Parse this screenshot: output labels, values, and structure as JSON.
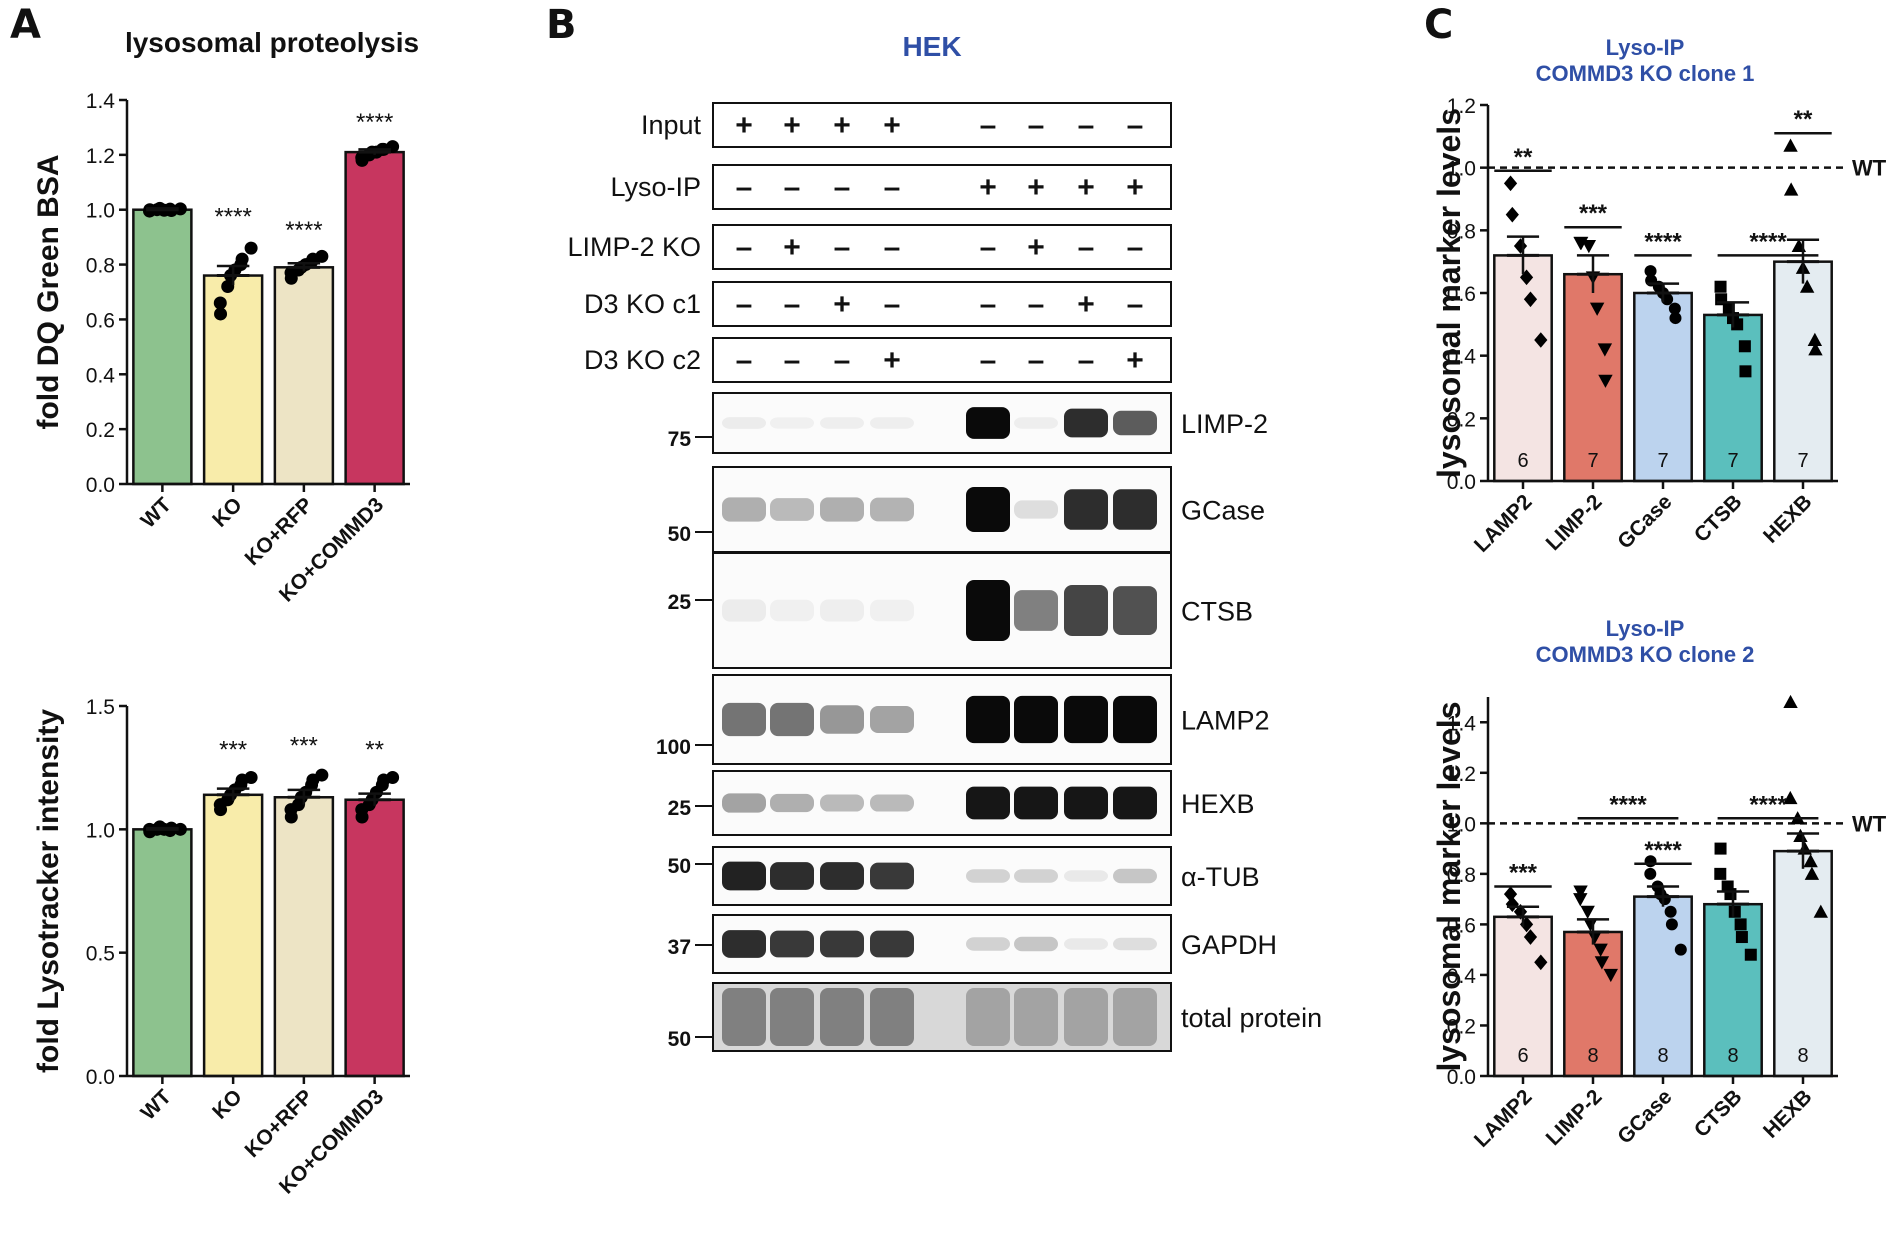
{
  "panels": {
    "a": "A",
    "b": "B",
    "c": "C"
  },
  "colors": {
    "wt": "#8dc28e",
    "ko": "#f8ecaa",
    "ko_rfp": "#ede4c5",
    "ko_commd3": "#c7365f",
    "lamp2": "#f4e4e3",
    "limp2": "#e07869",
    "gcase": "#bcd3ee",
    "ctsb": "#5bbfbd",
    "hexb": "#e4ecf1",
    "title_blue": "#2f4fa6"
  },
  "chart_data": [
    {
      "id": "A-top",
      "type": "bar",
      "title": "lysosomal proteolysis",
      "ylabel": "fold DQ Green BSA",
      "ylim": [
        0,
        1.4
      ],
      "yticks": [
        "0.0",
        "0.2",
        "0.4",
        "0.6",
        "0.8",
        "1.0",
        "1.2",
        "1.4"
      ],
      "categories": [
        "WT",
        "KO",
        "KO+RFP",
        "KO+COMMD3"
      ],
      "values": [
        1.0,
        0.76,
        0.79,
        1.21
      ],
      "errors": [
        0.005,
        0.035,
        0.015,
        0.01
      ],
      "color_keys": [
        "wt",
        "ko",
        "ko_rfp",
        "ko_commd3"
      ],
      "significance": [
        "",
        "****",
        "****",
        "****"
      ],
      "points": [
        [
          1.0,
          0.995,
          1.0,
          1.005,
          0.998,
          1.002,
          0.997,
          1.003
        ],
        [
          0.62,
          0.66,
          0.72,
          0.76,
          0.78,
          0.8,
          0.82,
          0.86
        ],
        [
          0.75,
          0.77,
          0.78,
          0.79,
          0.8,
          0.81,
          0.82,
          0.83
        ],
        [
          1.18,
          1.19,
          1.2,
          1.21,
          1.21,
          1.22,
          1.22,
          1.23
        ]
      ]
    },
    {
      "id": "A-bottom",
      "type": "bar",
      "ylabel": "fold Lysotracker intensity",
      "ylim": [
        0,
        1.5
      ],
      "yticks": [
        "0.0",
        "0.5",
        "1.0",
        "1.5"
      ],
      "categories": [
        "WT",
        "KO",
        "KO+RFP",
        "KO+COMMD3"
      ],
      "values": [
        1.0,
        1.14,
        1.13,
        1.12
      ],
      "errors": [
        0.005,
        0.025,
        0.03,
        0.025
      ],
      "color_keys": [
        "wt",
        "ko",
        "ko_rfp",
        "ko_commd3"
      ],
      "significance": [
        "",
        "***",
        "***",
        "**"
      ],
      "points": [
        [
          0.99,
          1.0,
          1.0,
          1.01,
          1.0,
          0.995,
          1.005,
          1.0
        ],
        [
          1.08,
          1.1,
          1.12,
          1.14,
          1.16,
          1.18,
          1.2,
          1.21
        ],
        [
          1.05,
          1.08,
          1.1,
          1.13,
          1.15,
          1.18,
          1.2,
          1.22
        ],
        [
          1.05,
          1.08,
          1.1,
          1.12,
          1.15,
          1.18,
          1.2,
          1.21
        ]
      ]
    },
    {
      "id": "C-top",
      "type": "bar",
      "title": "Lyso-IP",
      "subtitle": "COMMD3 KO clone 1",
      "ylabel": "lysosomal marker levels",
      "ylim": [
        0,
        1.2
      ],
      "yticks": [
        "0.0",
        "0.2",
        "0.4",
        "0.6",
        "0.8",
        "1.0",
        "1.2"
      ],
      "reference_line": {
        "y": 1.0,
        "label": "WT"
      },
      "categories": [
        "LAMP2",
        "LIMP-2",
        "GCase",
        "CTSB",
        "HEXB"
      ],
      "values": [
        0.72,
        0.66,
        0.6,
        0.53,
        0.7
      ],
      "errors": [
        0.06,
        0.06,
        0.03,
        0.04,
        0.07
      ],
      "n": [
        "6",
        "7",
        "7",
        "7",
        "7"
      ],
      "color_keys": [
        "lamp2",
        "limp2",
        "gcase",
        "ctsb",
        "hexb"
      ],
      "markers": [
        "diamond",
        "triangle-down",
        "circle",
        "square",
        "triangle-up"
      ],
      "significance_brackets": [
        {
          "label": "**",
          "at": 0,
          "y": 0.99
        },
        {
          "label": "***",
          "at": 1,
          "y": 0.81
        },
        {
          "label": "****",
          "at": 2,
          "y": 0.72
        },
        {
          "label": "****",
          "at": 3.5,
          "y": 0.72,
          "span": 0.45
        },
        {
          "label": "**",
          "at": 4,
          "y": 1.11
        }
      ],
      "points": [
        [
          0.95,
          0.85,
          0.75,
          0.65,
          0.58,
          0.45
        ],
        [
          0.76,
          0.76,
          0.75,
          0.65,
          0.55,
          0.42,
          0.32
        ],
        [
          0.67,
          0.64,
          0.62,
          0.6,
          0.58,
          0.55,
          0.52
        ],
        [
          0.62,
          0.58,
          0.55,
          0.52,
          0.5,
          0.43,
          0.35
        ],
        [
          1.07,
          0.93,
          0.75,
          0.68,
          0.62,
          0.45,
          0.42
        ]
      ]
    },
    {
      "id": "C-bottom",
      "type": "bar",
      "title": "Lyso-IP",
      "subtitle": "COMMD3 KO clone 2",
      "ylabel": "lysosomal marker levels",
      "ylim": [
        0,
        1.5
      ],
      "yticks": [
        "0.0",
        "0.2",
        "0.4",
        "0.6",
        "0.8",
        "1.0",
        "1.2",
        "1.4"
      ],
      "reference_line": {
        "y": 1.0,
        "label": "WT"
      },
      "categories": [
        "LAMP2",
        "LIMP-2",
        "GCase",
        "CTSB",
        "HEXB"
      ],
      "values": [
        0.63,
        0.57,
        0.71,
        0.68,
        0.89
      ],
      "errors": [
        0.04,
        0.05,
        0.04,
        0.05,
        0.07
      ],
      "n": [
        "6",
        "8",
        "8",
        "8",
        "8"
      ],
      "color_keys": [
        "lamp2",
        "limp2",
        "gcase",
        "ctsb",
        "hexb"
      ],
      "markers": [
        "diamond",
        "triangle-down",
        "circle",
        "square",
        "triangle-up"
      ],
      "significance_brackets": [
        {
          "label": "***",
          "at": 0,
          "y": 0.75
        },
        {
          "label": "****",
          "at": 1.5,
          "y": 1.02,
          "span": 0.45
        },
        {
          "label": "****",
          "at": 2,
          "y": 0.84
        },
        {
          "label": "****",
          "at": 3.5,
          "y": 1.02,
          "span": 0.45
        }
      ],
      "points": [
        [
          0.72,
          0.68,
          0.65,
          0.6,
          0.55,
          0.45
        ],
        [
          0.73,
          0.7,
          0.65,
          0.6,
          0.55,
          0.5,
          0.45,
          0.4
        ],
        [
          0.85,
          0.8,
          0.75,
          0.72,
          0.7,
          0.65,
          0.6,
          0.5
        ],
        [
          0.9,
          0.8,
          0.75,
          0.72,
          0.65,
          0.6,
          0.55,
          0.48
        ],
        [
          1.48,
          1.1,
          1.02,
          0.95,
          0.9,
          0.85,
          0.8,
          0.65
        ]
      ]
    }
  ],
  "blot": {
    "title": "HEK",
    "condition_rows": [
      {
        "label": "Input",
        "marks": [
          "+",
          "+",
          "+",
          "+",
          "–",
          "–",
          "–",
          "–"
        ]
      },
      {
        "label": "Lyso-IP",
        "marks": [
          "–",
          "–",
          "–",
          "–",
          "+",
          "+",
          "+",
          "+"
        ]
      },
      {
        "label": "LIMP-2 KO",
        "marks": [
          "–",
          "+",
          "–",
          "–",
          "–",
          "+",
          "–",
          "–"
        ]
      },
      {
        "label": "D3 KO c1",
        "marks": [
          "–",
          "–",
          "+",
          "–",
          "–",
          "–",
          "+",
          "–"
        ]
      },
      {
        "label": "D3 KO c2",
        "marks": [
          "–",
          "–",
          "–",
          "+",
          "–",
          "–",
          "–",
          "+"
        ]
      }
    ],
    "panels": [
      {
        "label": "LIMP-2",
        "mw": [
          "75"
        ],
        "intensity": [
          0.04,
          0.02,
          0.03,
          0.03,
          1.0,
          0.03,
          0.85,
          0.65
        ]
      },
      {
        "label": "GCase",
        "mw": [
          "50"
        ],
        "intensity": [
          0.3,
          0.25,
          0.3,
          0.28,
          1.0,
          0.1,
          0.85,
          0.85
        ]
      },
      {
        "label": "CTSB",
        "mw": [
          "25"
        ],
        "intensity": [
          0.04,
          0.02,
          0.03,
          0.02,
          1.0,
          0.5,
          0.75,
          0.7
        ]
      },
      {
        "label": "LAMP2",
        "mw": [
          "100"
        ],
        "intensity": [
          0.55,
          0.55,
          0.4,
          0.35,
          1.0,
          1.0,
          1.0,
          1.0
        ]
      },
      {
        "label": "HEXB",
        "mw": [
          "25"
        ],
        "intensity": [
          0.35,
          0.3,
          0.25,
          0.25,
          0.95,
          0.95,
          0.95,
          0.95
        ]
      },
      {
        "label": "α-TUB",
        "mw": [
          "50"
        ],
        "intensity": [
          0.9,
          0.85,
          0.85,
          0.8,
          0.15,
          0.15,
          0.05,
          0.2
        ]
      },
      {
        "label": "GAPDH",
        "mw": [
          "37"
        ],
        "intensity": [
          0.85,
          0.8,
          0.8,
          0.8,
          0.15,
          0.2,
          0.05,
          0.1
        ]
      },
      {
        "label": "total protein",
        "mw": [
          "50"
        ],
        "intensity": [
          0.5,
          0.5,
          0.5,
          0.5,
          0.35,
          0.35,
          0.35,
          0.35
        ]
      }
    ]
  }
}
